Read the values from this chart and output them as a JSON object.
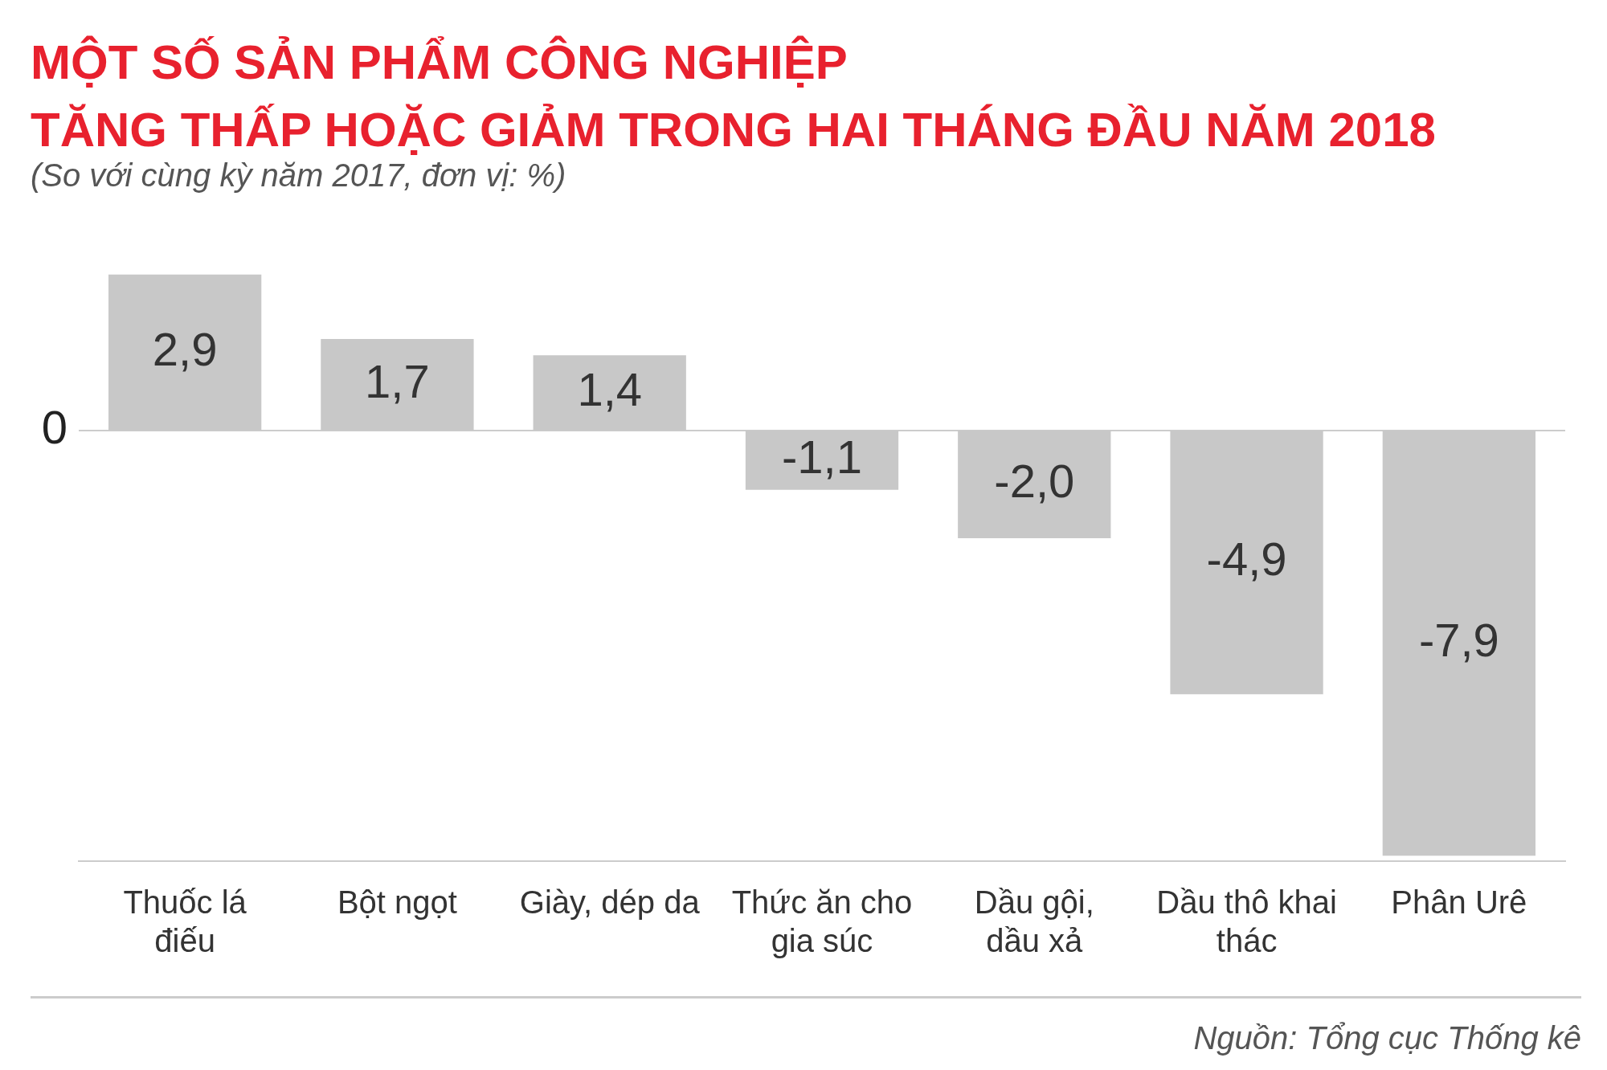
{
  "chart_data": {
    "type": "bar",
    "title": "MỘT SỐ SẢN PHẨM CÔNG NGHIỆP\nTĂNG THẤP HOẶC GIẢM TRONG HAI THÁNG ĐẦU NĂM 2018",
    "subtitle": "(So với cùng kỳ năm 2017, đơn vị: %)",
    "categories": [
      "Thuốc lá điếu",
      "Bột ngọt",
      "Giày, dép da",
      "Thức ăn cho gia súc",
      "Dầu gội, dầu xả",
      "Dầu thô khai thác",
      "Phân Urê"
    ],
    "values": [
      2.9,
      1.7,
      1.4,
      -1.1,
      -2.0,
      -4.9,
      -7.9
    ],
    "value_labels": [
      "2,9",
      "1,7",
      "1,4",
      "-1,1",
      "-2,0",
      "-4,9",
      "-7,9"
    ],
    "color": "#c8c8c8",
    "ref_lines": [
      {
        "axis": "y",
        "value": 0,
        "label": "0",
        "color": "#cccccc"
      }
    ],
    "annotations": [
      "Nguồn: Tổng cục Thống kê"
    ]
  }
}
